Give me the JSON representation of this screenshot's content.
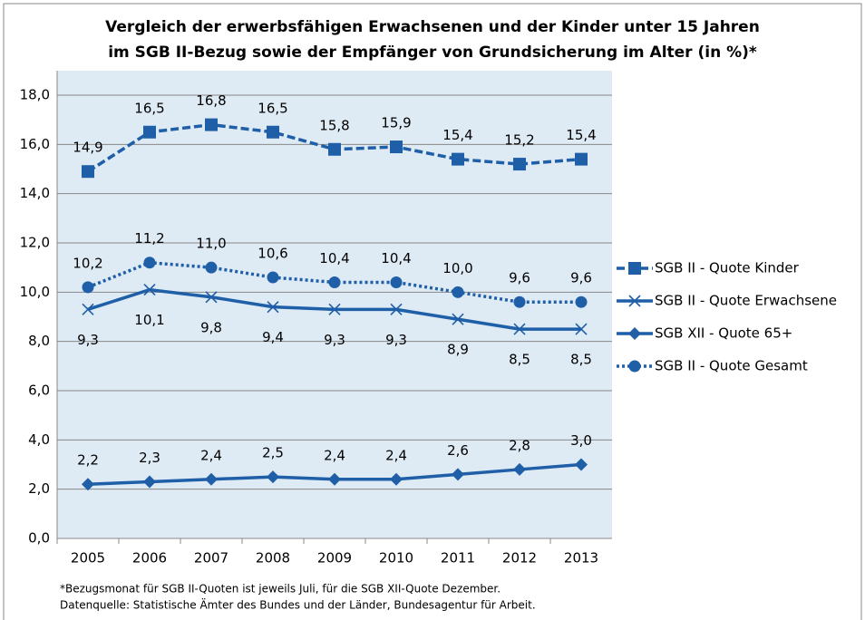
{
  "chart_data": {
    "type": "line",
    "title": [
      "Vergleich der erwerbsfähigen Erwachsenen und der Kinder unter 15 Jahren",
      "im SGB II-Bezug sowie der Empfänger von Grundsicherung im Alter (in %)*"
    ],
    "categories": [
      "2005",
      "2006",
      "2007",
      "2008",
      "2009",
      "2010",
      "2011",
      "2012",
      "2013"
    ],
    "series": [
      {
        "name": "SGB II - Quote Kinder",
        "color": "#1f5fa8",
        "marker": "square",
        "dash": "dashed",
        "values": [
          14.9,
          16.5,
          16.8,
          16.5,
          15.8,
          15.9,
          15.4,
          15.2,
          15.4
        ],
        "value_labels": [
          "14,9",
          "16,5",
          "16,8",
          "16,5",
          "15,8",
          "15,9",
          "15,4",
          "15,2",
          "15,4"
        ]
      },
      {
        "name": "SGB II - Quote Erwachsene",
        "color": "#1f5fa8",
        "marker": "x",
        "dash": "solid",
        "values": [
          9.3,
          10.1,
          9.8,
          9.4,
          9.3,
          9.3,
          8.9,
          8.5,
          8.5
        ],
        "value_labels": [
          "9,3",
          "10,1",
          "9,8",
          "9,4",
          "9,3",
          "9,3",
          "8,9",
          "8,5",
          "8,5"
        ]
      },
      {
        "name": "SGB XII - Quote 65+",
        "color": "#1f5fa8",
        "marker": "diamond",
        "dash": "solid",
        "values": [
          2.2,
          2.3,
          2.4,
          2.5,
          2.4,
          2.4,
          2.6,
          2.8,
          3.0
        ],
        "value_labels": [
          "2,2",
          "2,3",
          "2,4",
          "2,5",
          "2,4",
          "2,4",
          "2,6",
          "2,8",
          "3,0"
        ]
      },
      {
        "name": "SGB II - Quote Gesamt",
        "color": "#1f5fa8",
        "marker": "circle",
        "dash": "dotted",
        "values": [
          10.2,
          11.2,
          11.0,
          10.6,
          10.4,
          10.4,
          10.0,
          9.6,
          9.6
        ],
        "value_labels": [
          "10,2",
          "11,2",
          "11,0",
          "10,6",
          "10,4",
          "10,4",
          "10,0",
          "9,6",
          "9,6"
        ]
      }
    ],
    "ylim": [
      0,
      18
    ],
    "yticks": [
      {
        "value": 0,
        "label": "0,0"
      },
      {
        "value": 2,
        "label": "2,0"
      },
      {
        "value": 4,
        "label": "4,0"
      },
      {
        "value": 6,
        "label": "6,0"
      },
      {
        "value": 8,
        "label": "8,0"
      },
      {
        "value": 10,
        "label": "10,0"
      },
      {
        "value": 12,
        "label": "12,0"
      },
      {
        "value": 14,
        "label": "14,0"
      },
      {
        "value": 16,
        "label": "16,0"
      },
      {
        "value": 18,
        "label": "18,0"
      }
    ],
    "grid": true,
    "legend": "right",
    "notes": [
      "*Bezugsmonat für SGB II-Quoten ist jeweils Juli, für die SGB XII-Quote Dezember.",
      "Datenquelle: Statistische Ämter des Bundes und der Länder, Bundesagentur für Arbeit."
    ]
  }
}
